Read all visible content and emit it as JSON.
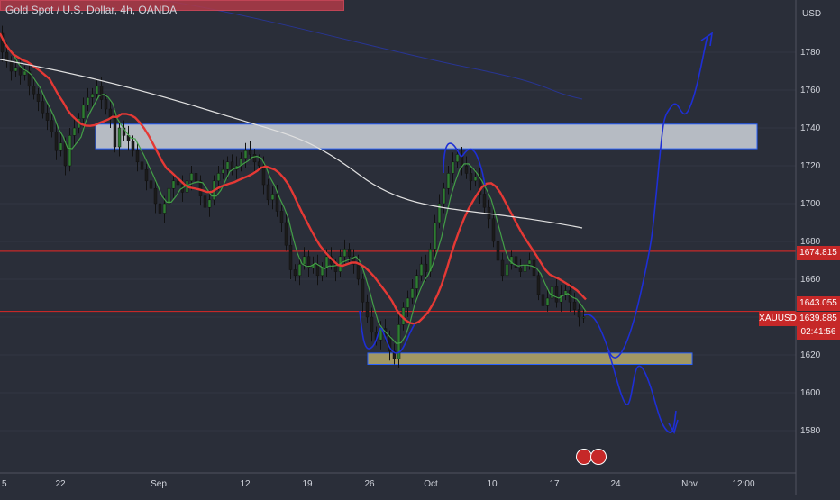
{
  "header": {
    "title": "Gold Spot / U.S. Dollar, 4h, OANDA"
  },
  "axis": {
    "currency": "USD"
  },
  "price_tags": {
    "level_high": "1674.815",
    "current_high": "1643.055",
    "symbol": "XAUUSD",
    "current": "1639.885",
    "countdown": "02:41:56"
  },
  "colors": {
    "background": "#2a2e39",
    "candle_up": "#2e7d32",
    "candle_down": "#1b1b1b",
    "sma_fast": "#43a047",
    "sma_mid": "#e53935",
    "sma_slow": "#e0e0e0",
    "sma_long": "#283593",
    "drawing": "#1e2fd6",
    "zone_supply": "#cfd3dc",
    "zone_demand": "#b7aa6b",
    "level_line": "#c62828",
    "price_tag_red": "#c62828"
  },
  "chart_data": {
    "type": "candlestick",
    "title": "Gold Spot / U.S. Dollar, 4h, OANDA",
    "ylabel": "USD",
    "ylim": [
      1560,
      1800
    ],
    "y_ticks": [
      1580,
      1600,
      1620,
      1640,
      1660,
      1680,
      1700,
      1720,
      1740,
      1760,
      1780
    ],
    "x_ticks": [
      "15",
      "22",
      "Sep",
      "12",
      "19",
      "26",
      "Oct",
      "10",
      "17",
      "24",
      "Nov",
      "12:00"
    ],
    "price_path": [
      [
        0,
        1790
      ],
      [
        5,
        1780
      ],
      [
        10,
        1775
      ],
      [
        15,
        1770
      ],
      [
        20,
        1772
      ],
      [
        25,
        1768
      ],
      [
        30,
        1770
      ],
      [
        35,
        1762
      ],
      [
        40,
        1758
      ],
      [
        45,
        1754
      ],
      [
        50,
        1748
      ],
      [
        55,
        1744
      ],
      [
        60,
        1738
      ],
      [
        65,
        1728
      ],
      [
        70,
        1732
      ],
      [
        75,
        1720
      ],
      [
        80,
        1736
      ],
      [
        85,
        1740
      ],
      [
        90,
        1745
      ],
      [
        95,
        1752
      ],
      [
        100,
        1756
      ],
      [
        105,
        1758
      ],
      [
        110,
        1762
      ],
      [
        115,
        1755
      ],
      [
        120,
        1750
      ],
      [
        125,
        1745
      ],
      [
        130,
        1730
      ],
      [
        135,
        1740
      ],
      [
        140,
        1736
      ],
      [
        145,
        1733
      ],
      [
        150,
        1728
      ],
      [
        155,
        1722
      ],
      [
        160,
        1718
      ],
      [
        165,
        1712
      ],
      [
        170,
        1708
      ],
      [
        175,
        1700
      ],
      [
        180,
        1695
      ],
      [
        185,
        1700
      ],
      [
        190,
        1708
      ],
      [
        195,
        1712
      ],
      [
        200,
        1710
      ],
      [
        205,
        1706
      ],
      [
        210,
        1712
      ],
      [
        215,
        1716
      ],
      [
        220,
        1712
      ],
      [
        225,
        1704
      ],
      [
        230,
        1698
      ],
      [
        235,
        1702
      ],
      [
        240,
        1712
      ],
      [
        245,
        1716
      ],
      [
        250,
        1718
      ],
      [
        255,
        1722
      ],
      [
        260,
        1718
      ],
      [
        265,
        1720
      ],
      [
        270,
        1724
      ],
      [
        275,
        1728
      ],
      [
        280,
        1726
      ],
      [
        285,
        1722
      ],
      [
        290,
        1720
      ],
      [
        295,
        1710
      ],
      [
        300,
        1702
      ],
      [
        305,
        1705
      ],
      [
        310,
        1696
      ],
      [
        315,
        1690
      ],
      [
        320,
        1678
      ],
      [
        325,
        1665
      ],
      [
        330,
        1662
      ],
      [
        335,
        1668
      ],
      [
        340,
        1672
      ],
      [
        345,
        1666
      ],
      [
        350,
        1668
      ],
      [
        355,
        1662
      ],
      [
        360,
        1666
      ],
      [
        365,
        1672
      ],
      [
        370,
        1668
      ],
      [
        375,
        1664
      ],
      [
        380,
        1672
      ],
      [
        385,
        1676
      ],
      [
        390,
        1672
      ],
      [
        395,
        1668
      ],
      [
        400,
        1660
      ],
      [
        405,
        1648
      ],
      [
        410,
        1640
      ],
      [
        415,
        1632
      ],
      [
        420,
        1628
      ],
      [
        425,
        1634
      ],
      [
        430,
        1630
      ],
      [
        435,
        1622
      ],
      [
        440,
        1618
      ],
      [
        445,
        1636
      ],
      [
        450,
        1645
      ],
      [
        455,
        1650
      ],
      [
        460,
        1655
      ],
      [
        465,
        1662
      ],
      [
        470,
        1668
      ],
      [
        475,
        1664
      ],
      [
        480,
        1676
      ],
      [
        485,
        1690
      ],
      [
        490,
        1700
      ],
      [
        495,
        1708
      ],
      [
        500,
        1716
      ],
      [
        505,
        1722
      ],
      [
        510,
        1726
      ],
      [
        515,
        1720
      ],
      [
        520,
        1716
      ],
      [
        525,
        1712
      ],
      [
        530,
        1714
      ],
      [
        535,
        1705
      ],
      [
        540,
        1698
      ],
      [
        545,
        1692
      ],
      [
        550,
        1680
      ],
      [
        555,
        1670
      ],
      [
        560,
        1662
      ],
      [
        565,
        1668
      ],
      [
        570,
        1672
      ],
      [
        575,
        1666
      ],
      [
        580,
        1664
      ],
      [
        585,
        1668
      ],
      [
        590,
        1670
      ],
      [
        595,
        1662
      ],
      [
        600,
        1652
      ],
      [
        605,
        1646
      ],
      [
        610,
        1650
      ],
      [
        615,
        1656
      ],
      [
        620,
        1648
      ],
      [
        625,
        1652
      ],
      [
        630,
        1654
      ],
      [
        635,
        1648
      ],
      [
        640,
        1644
      ],
      [
        645,
        1640
      ],
      [
        650,
        1640
      ]
    ],
    "supply_zone": [
      1729,
      1742
    ],
    "demand_zone": [
      1615,
      1621
    ],
    "horizontal_levels": [
      1674.815,
      1643.055
    ]
  }
}
